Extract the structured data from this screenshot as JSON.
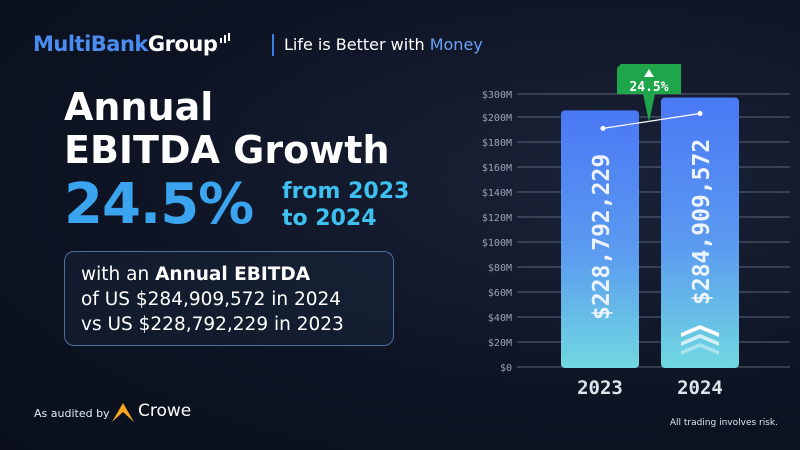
{
  "header": {
    "logo_part1": "MultiBank",
    "logo_part2": "Group",
    "tagline_part1": "Life is Better with ",
    "tagline_part2": "Money"
  },
  "headline": {
    "line1": "Annual",
    "line2": "EBITDA Growth",
    "percent": "24.5%",
    "from_line1": "from 2023",
    "from_line2": "to 2024"
  },
  "summary": {
    "line1_pre": "with an ",
    "line1_bold": "Annual EBITDA",
    "line2": "of US $284,909,572 in 2024",
    "line3": "vs US $228,792,229 in 2023"
  },
  "footer": {
    "audited_by": "As audited by",
    "auditor": "Crowe",
    "disclaimer": "All trading involves risk."
  },
  "colors": {
    "background": "#0d1322",
    "bar_top": "#4a78f5",
    "bar_bottom": "#6fd6e0",
    "badge": "#1fa64a",
    "accent": "#3aa4ee"
  },
  "chart_data": {
    "type": "bar",
    "categories": [
      "2023",
      "2024"
    ],
    "values": [
      228792229,
      284909572
    ],
    "value_labels": [
      "$228,792,229",
      "$284,909,572"
    ],
    "y_ticks": [
      "$0",
      "$20M",
      "$40M",
      "$60M",
      "$80M",
      "$100M",
      "$120M",
      "$140M",
      "$160M",
      "$180M",
      "$200M",
      "$300M"
    ],
    "y_tick_values": [
      0,
      20000000,
      40000000,
      60000000,
      80000000,
      100000000,
      120000000,
      140000000,
      160000000,
      180000000,
      200000000,
      300000000
    ],
    "growth_label": "24.5%",
    "grid": true
  }
}
